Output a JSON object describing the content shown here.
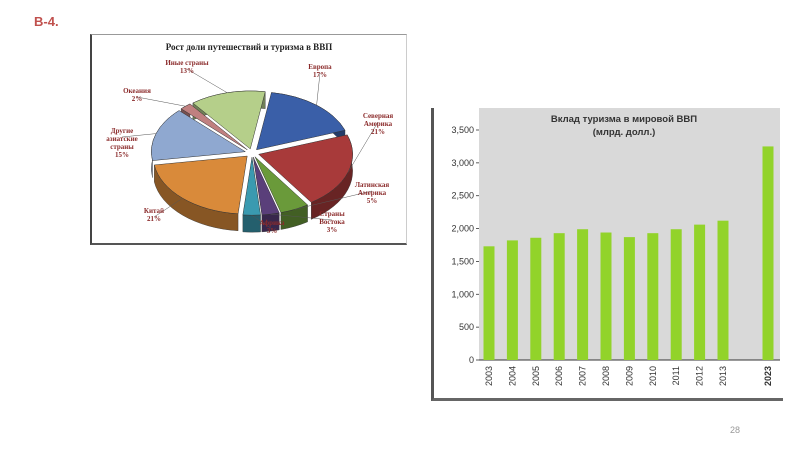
{
  "slide": {
    "label": "В-4.",
    "page_number": "28"
  },
  "chart_data": [
    {
      "type": "pie",
      "title": "Рост доли путешествий и туризма в ВВП",
      "slices": [
        {
          "name": "Европа",
          "value": 17,
          "value_label": "17%",
          "color": "#3a5fa8"
        },
        {
          "name": "Северная Америка",
          "value": 21,
          "value_label": "21%",
          "color": "#a83a3a"
        },
        {
          "name": "Латинская Америка",
          "value": 5,
          "value_label": "5%",
          "color": "#6a9a3a"
        },
        {
          "name": "Страны Востока",
          "value": 3,
          "value_label": "3%",
          "color": "#5a3f7a"
        },
        {
          "name": "Африка",
          "value": 3,
          "value_label": "3%",
          "color": "#3a9ab0"
        },
        {
          "name": "Китай",
          "value": 21,
          "value_label": "21%",
          "color": "#d98a3a"
        },
        {
          "name": "Другие азиатские страны",
          "value": 15,
          "value_label": "15%",
          "color": "#8fa8d0"
        },
        {
          "name": "Океания",
          "value": 2,
          "value_label": "2%",
          "color": "#c08080"
        },
        {
          "name": "Иные страны",
          "value": 13,
          "value_label": "13%",
          "color": "#b5cf8a"
        }
      ]
    },
    {
      "type": "bar",
      "title": "Вклад туризма в мировой ВВП",
      "subtitle": "(млрд. долл.)",
      "categories": [
        "2003",
        "2004",
        "2005",
        "2006",
        "2007",
        "2008",
        "2009",
        "2010",
        "2011",
        "2012",
        "2013",
        "2023"
      ],
      "values": [
        1730,
        1820,
        1860,
        1930,
        1990,
        1940,
        1870,
        1930,
        1990,
        2060,
        2120,
        3250
      ],
      "ylim": [
        0,
        3500
      ],
      "yticks": [
        "0",
        "500",
        "1,000",
        "1,500",
        "2,000",
        "2,500",
        "3,000",
        "3,500"
      ],
      "grid": false,
      "bar_color": "#92d32a"
    }
  ]
}
